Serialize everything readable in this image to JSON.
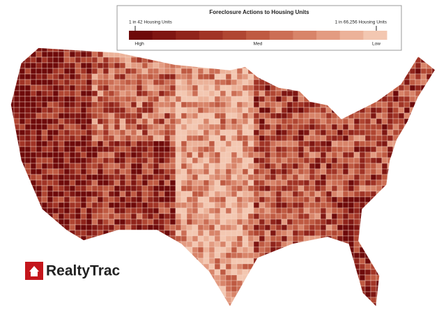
{
  "legend": {
    "title": "Foreclosure Actions to Housing Units",
    "high_rate": "1 in 42 Housing Units",
    "low_rate": "1 in 66,256 Housing Units",
    "labels": [
      "High",
      "Med",
      "Low"
    ],
    "colors": [
      "#6e0a0a",
      "#7f1612",
      "#90241b",
      "#a13426",
      "#b04632",
      "#bf5a42",
      "#cc6e55",
      "#d88469",
      "#e39b81",
      "#ecb299",
      "#f3c7b1"
    ]
  },
  "logo": {
    "text": "RealtyTrac"
  }
}
